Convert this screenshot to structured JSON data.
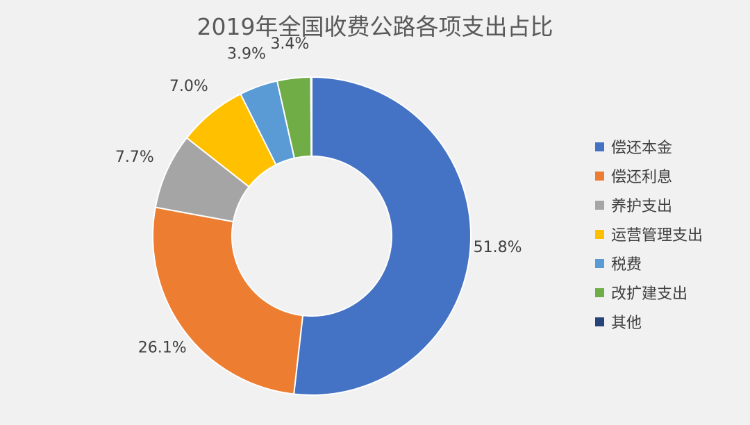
{
  "chart_data": {
    "type": "pie",
    "variant": "donut",
    "title": "2019年全国收费公路各项支出占比",
    "categories": [
      "偿还本金",
      "偿还利息",
      "养护支出",
      "运营管理支出",
      "税费",
      "改扩建支出",
      "其他"
    ],
    "values": [
      51.8,
      26.1,
      7.7,
      7.0,
      3.9,
      3.4,
      0.1
    ],
    "data_labels": [
      "51.8%",
      "26.1%",
      "7.7%",
      "7.0%",
      "3.9%",
      "3.4%",
      ""
    ],
    "colors": [
      "#4472c4",
      "#ed7d31",
      "#a5a5a5",
      "#ffc000",
      "#5b9bd5",
      "#70ad47",
      "#264478"
    ],
    "legend_position": "right"
  }
}
